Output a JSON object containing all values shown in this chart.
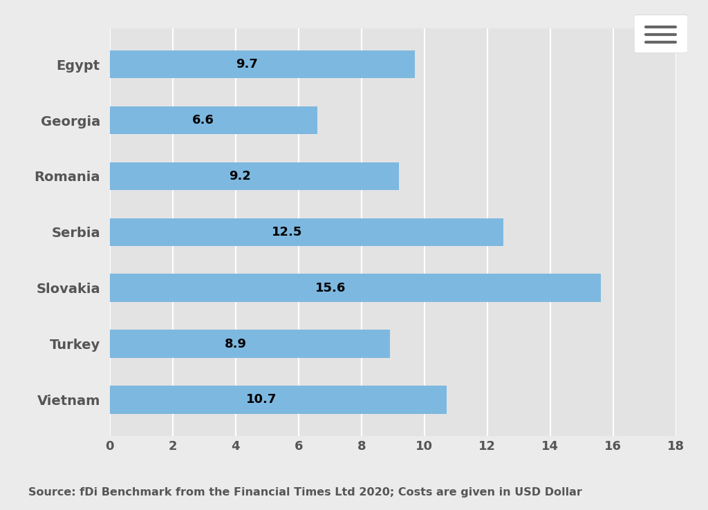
{
  "countries": [
    "Egypt",
    "Georgia",
    "Romania",
    "Serbia",
    "Slovakia",
    "Turkey",
    "Vietnam"
  ],
  "values": [
    9.7,
    6.6,
    9.2,
    12.5,
    15.6,
    8.9,
    10.7
  ],
  "bar_color": "#7DB8E0",
  "background_color": "#EBEBEB",
  "plot_bg_color": "#E3E3E3",
  "xlim": [
    0,
    18
  ],
  "xticks": [
    0,
    2,
    4,
    6,
    8,
    10,
    12,
    14,
    16,
    18
  ],
  "bar_height": 0.5,
  "label_fontsize": 14,
  "tick_fontsize": 13,
  "value_fontsize": 13,
  "source_text": "Source: fDi Benchmark from the Financial Times Ltd 2020; Costs are given in USD Dollar",
  "source_fontsize": 11.5,
  "grid_color": "#FFFFFF",
  "label_color": "#555555",
  "value_text_color": "#000000",
  "menu_box_color": "#FFFFFF",
  "menu_line_color": "#666666"
}
